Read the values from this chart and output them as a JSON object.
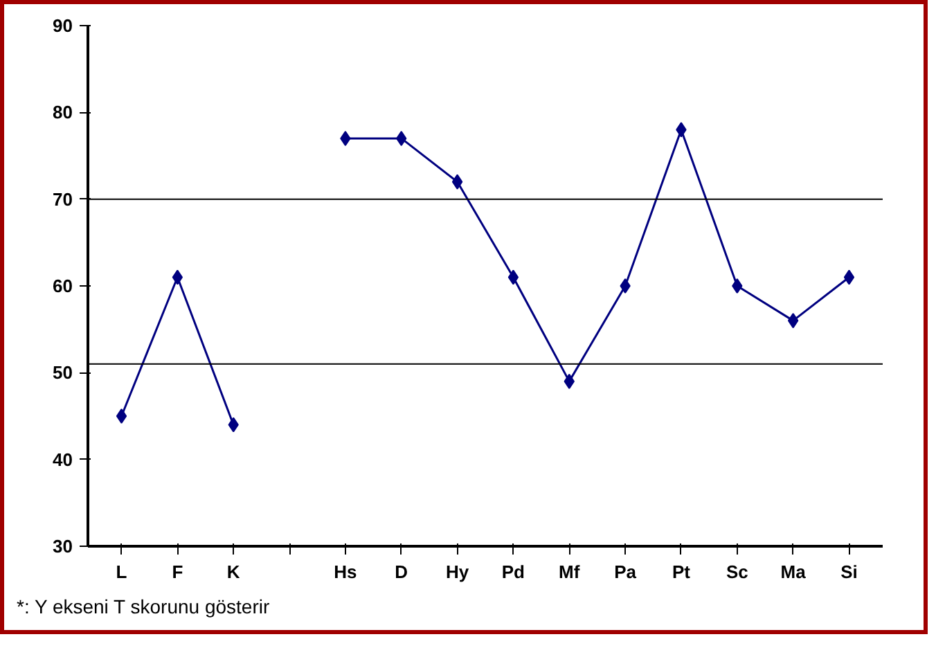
{
  "chart_data": {
    "type": "line",
    "categories": [
      "L",
      "F",
      "K",
      null,
      "Hs",
      "D",
      "Hy",
      "Pd",
      "Mf",
      "Pa",
      "Pt",
      "Sc",
      "Ma",
      "Si"
    ],
    "series": [
      {
        "color": "#000080",
        "values": [
          45,
          61,
          44,
          null,
          77,
          77,
          72,
          61,
          49,
          60,
          78,
          60,
          56,
          61
        ]
      }
    ],
    "ylim": [
      30,
      90
    ],
    "yticks": [
      30,
      40,
      50,
      60,
      70,
      80,
      90
    ],
    "ref_lines": [
      {
        "axis": "y",
        "value": 70,
        "color": "#000000"
      },
      {
        "axis": "y",
        "value": 51,
        "color": "#000000"
      }
    ],
    "marker": "diamond",
    "grid": false,
    "annotations": [
      "*: Y ekseni T skorunu gösterir"
    ]
  }
}
